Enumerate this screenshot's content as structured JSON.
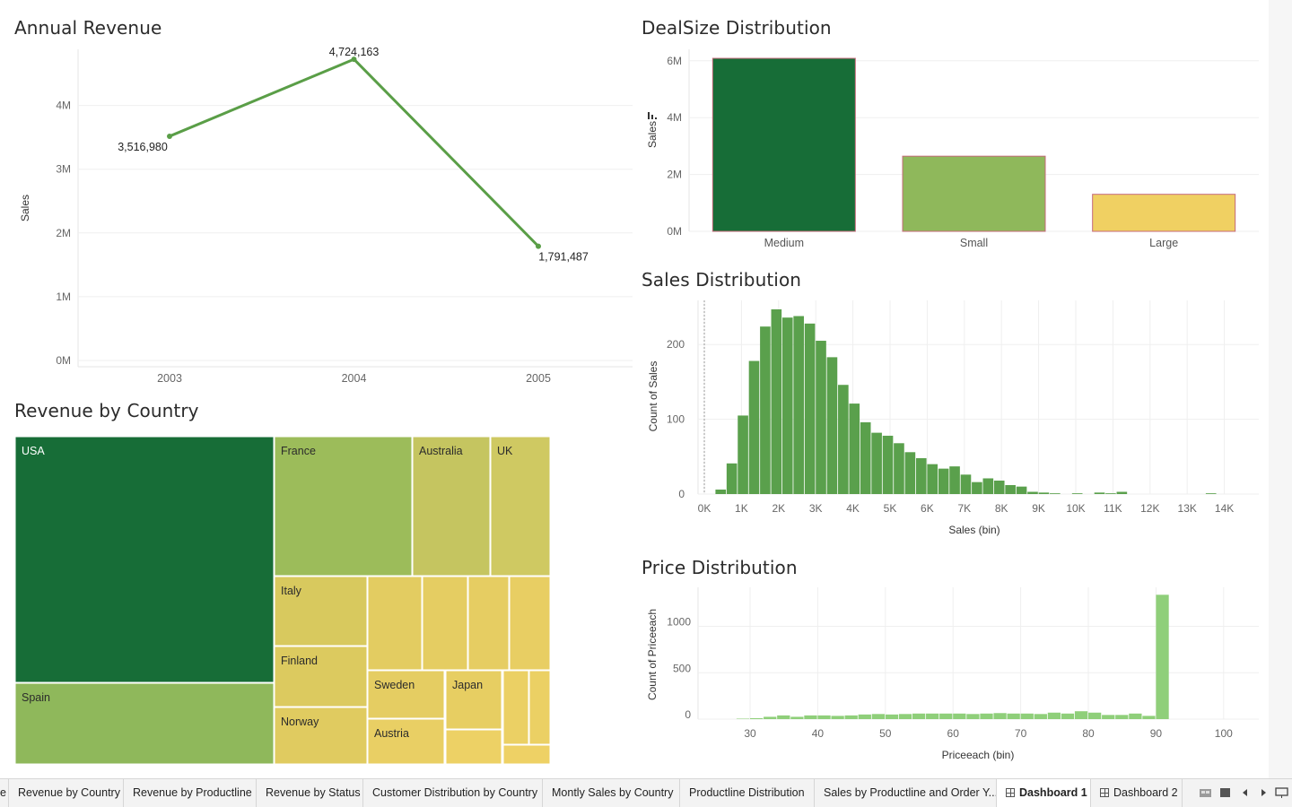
{
  "panels": {
    "annual_revenue": "Annual Revenue",
    "dealsize": "DealSize Distribution",
    "revenue_country": "Revenue by Country",
    "sales_dist": "Sales Distribution",
    "price_dist": "Price Distribution"
  },
  "chart_data": [
    {
      "id": "annual_revenue",
      "type": "line",
      "title": "Annual Revenue",
      "xlabel": "",
      "ylabel": "Sales",
      "x": [
        "2003",
        "2004",
        "2005"
      ],
      "values": [
        3516980,
        4724163,
        1791487
      ],
      "value_labels": [
        "3,516,980",
        "4,724,163",
        "1,791,487"
      ],
      "yticks": [
        "0M",
        "1M",
        "2M",
        "3M",
        "4M"
      ],
      "ylim": [
        0,
        4900000
      ],
      "color": "#5a9e47",
      "grid": true
    },
    {
      "id": "dealsize",
      "type": "bar",
      "title": "DealSize Distribution",
      "ylabel": "Sales",
      "categories": [
        "Medium",
        "Small",
        "Large"
      ],
      "values": [
        6087000,
        2644000,
        1303000
      ],
      "colors": [
        "#176d37",
        "#8fb85b",
        "#f0d062"
      ],
      "yticks": [
        "0M",
        "2M",
        "4M",
        "6M"
      ],
      "ylim": [
        0,
        6300000
      ]
    },
    {
      "id": "revenue_country",
      "type": "treemap",
      "title": "Revenue by Country",
      "labels": [
        "USA",
        "France",
        "Australia",
        "UK",
        "Spain",
        "Italy",
        "Finland",
        "Norway",
        "Sweden",
        "Japan",
        "Austria"
      ]
    },
    {
      "id": "sales_dist",
      "type": "bar",
      "title": "Sales Distribution",
      "xlabel": "Sales (bin)",
      "ylabel": "Count of Sales",
      "xticks": [
        "0K",
        "1K",
        "2K",
        "3K",
        "4K",
        "5K",
        "6K",
        "7K",
        "8K",
        "9K",
        "10K",
        "11K",
        "12K",
        "13K",
        "14K"
      ],
      "yticks": [
        "0",
        "100",
        "200"
      ],
      "bin_width": 300,
      "bin_start": 300,
      "values": [
        6,
        41,
        105,
        178,
        224,
        247,
        236,
        238,
        228,
        205,
        183,
        146,
        121,
        96,
        82,
        78,
        68,
        56,
        48,
        40,
        34,
        37,
        26,
        16,
        21,
        18,
        12,
        10,
        3,
        2,
        1,
        0,
        1,
        0,
        2,
        1,
        3,
        0,
        0,
        0,
        0,
        0,
        0,
        0,
        1
      ],
      "color": "#5aa04c",
      "ylim": [
        0,
        260
      ]
    },
    {
      "id": "price_dist",
      "type": "bar",
      "title": "Price Distribution",
      "xlabel": "Priceeach (bin)",
      "ylabel": "Count of Priceeach",
      "xticks": [
        "30",
        "40",
        "50",
        "60",
        "70",
        "80",
        "90",
        "100"
      ],
      "yticks": [
        "0",
        "500",
        "1000"
      ],
      "bin_width": 2,
      "bin_start": 26,
      "values": [
        0,
        5,
        10,
        25,
        40,
        25,
        40,
        40,
        35,
        40,
        50,
        55,
        50,
        55,
        60,
        60,
        60,
        60,
        55,
        60,
        65,
        60,
        60,
        55,
        70,
        60,
        85,
        70,
        45,
        45,
        60,
        35,
        1340
      ],
      "color": "#8fcf7a",
      "ylim": [
        0,
        1400
      ]
    }
  ],
  "tabs": [
    {
      "label": "e"
    },
    {
      "label": "Revenue by Country"
    },
    {
      "label": "Revenue by Productline"
    },
    {
      "label": "Revenue by Status"
    },
    {
      "label": "Customer Distribution by Country"
    },
    {
      "label": "Montly Sales by Country"
    },
    {
      "label": "Productline Distribution"
    },
    {
      "label": "Sales by Productline and Order Y..."
    },
    {
      "label": "Dashboard 1",
      "active": true
    },
    {
      "label": "Dashboard 2"
    }
  ]
}
